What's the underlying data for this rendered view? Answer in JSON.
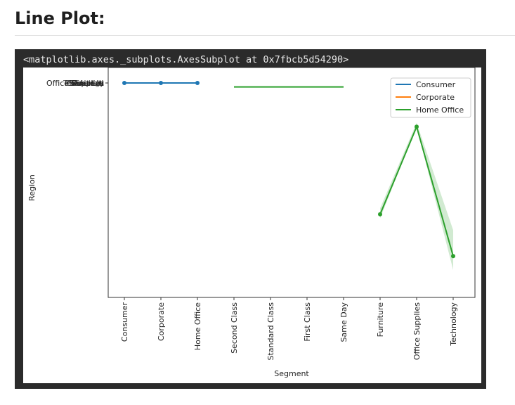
{
  "heading": "Line Plot:",
  "cell_output": "<matplotlib.axes._subplots.AxesSubplot at 0x7fbcb5d54290>",
  "colors": {
    "consumer": "#1f77b4",
    "corporate": "#ff7f0e",
    "home_office": "#2ca02c"
  },
  "chart_data": {
    "type": "line",
    "xlabel": "Segment",
    "ylabel": "Region",
    "categories": [
      "Consumer",
      "Corporate",
      "Home Office",
      "Second Class",
      "Standard Class",
      "First Class",
      "Same Day",
      "Furniture",
      "Office Supplies",
      "Technology"
    ],
    "y_tick_labels": [
      "Office Supplies",
      "Technology",
      "Furniture",
      "Central",
      "South",
      "West",
      "East"
    ],
    "legend": {
      "position": "top-right",
      "entries": [
        "Consumer",
        "Corporate",
        "Home Office"
      ]
    },
    "grid": false,
    "series": [
      {
        "name": "Consumer",
        "color": "#1f77b4",
        "x": [
          "Consumer",
          "Corporate",
          "Home Office"
        ],
        "y": [
          0.0,
          0.0,
          0.0
        ],
        "markers": true
      },
      {
        "name": "Home Office",
        "color": "#2ca02c",
        "x": [
          "Second Class",
          "Standard Class",
          "First Class",
          "Same Day"
        ],
        "y": [
          0.02,
          0.02,
          0.02,
          0.02
        ],
        "markers": false
      },
      {
        "name": "Home Office",
        "color": "#2ca02c",
        "x": [
          "Furniture",
          "Office Supplies",
          "Technology"
        ],
        "y": [
          0.66,
          0.22,
          0.87
        ],
        "markers": true,
        "band_low": [
          0.68,
          0.22,
          0.94
        ],
        "band_high": [
          0.63,
          0.2,
          0.74
        ]
      }
    ],
    "ylim": [
      0,
      1
    ]
  }
}
